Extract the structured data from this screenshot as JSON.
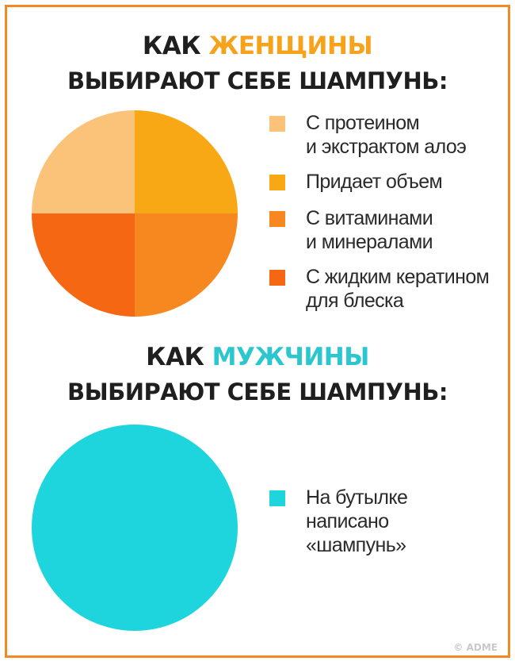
{
  "chart_data": [
    {
      "type": "pie",
      "title": {
        "prefix": "КАК ",
        "highlight": "ЖЕНЩИНЫ",
        "line2": "ВЫБИРАЮТ СЕБЕ ШАМПУНЬ:"
      },
      "highlight_color": "#F7A21B",
      "legend_placement": "right",
      "slices": [
        {
          "label": "С протеином\nи экстрактом алоэ",
          "value": 25,
          "color": "#FBC27A"
        },
        {
          "label": "Придает объем",
          "value": 25,
          "color": "#F9A815"
        },
        {
          "label": "С витаминами\nи минералами",
          "value": 25,
          "color": "#F7881F"
        },
        {
          "label": "С жидким кератином\nдля блеска",
          "value": 25,
          "color": "#F56712"
        }
      ]
    },
    {
      "type": "pie",
      "title": {
        "prefix": "КАК ",
        "highlight": "МУЖЧИНЫ",
        "line2": "ВЫБИРАЮТ СЕБЕ ШАМПУНЬ:"
      },
      "highlight_color": "#2CC6CF",
      "legend_placement": "right",
      "slices": [
        {
          "label": "На бутылке\nнаписано\n«шампунь»",
          "value": 100,
          "color": "#1ED5DD"
        }
      ]
    }
  ],
  "colors": {
    "frame": "#F08A22"
  },
  "credit": "© ADME"
}
